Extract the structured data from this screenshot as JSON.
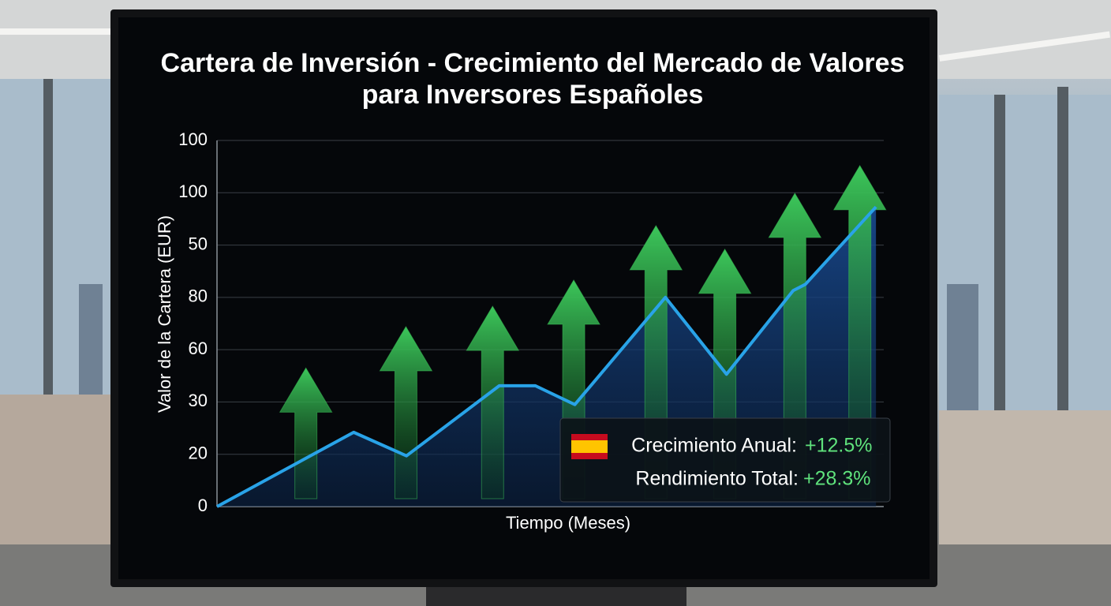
{
  "chart_data": {
    "type": "line",
    "title": "Cartera de Inversión - Crecimiento del Mercado de Valores para Inversores Españoles",
    "xlabel": "Tiempo (Meses)",
    "ylabel": "Valor de la Cartera (EUR)",
    "x": [
      0,
      2.46,
      3.41,
      5.08,
      5.73,
      6.44,
      8.07,
      9.17,
      10.37,
      10.59,
      11.86
    ],
    "values": [
      0,
      1.42,
      0.97,
      2.31,
      2.31,
      1.95,
      4.0,
      2.53,
      4.13,
      4.25,
      5.73
    ],
    "color": "#29a3e8",
    "xlim": [
      0,
      12
    ],
    "ylim": [
      0,
      7
    ],
    "yticks": [
      {
        "value": 0,
        "label": "0"
      },
      {
        "value": 1,
        "label": "20"
      },
      {
        "value": 2,
        "label": "30"
      },
      {
        "value": 3,
        "label": "60"
      },
      {
        "value": 4,
        "label": "80"
      },
      {
        "value": 5,
        "label": "50"
      },
      {
        "value": 6,
        "label": "100"
      },
      {
        "value": 7,
        "label": "100"
      }
    ],
    "grid": true,
    "arrows": {
      "color": "#3cc65a",
      "x": [
        1.6,
        3.4,
        4.96,
        6.42,
        7.9,
        9.14,
        10.4,
        11.57
      ],
      "values": [
        2.65,
        3.44,
        3.83,
        4.33,
        5.37,
        4.92,
        5.99,
        6.52
      ]
    },
    "annotations": [
      {
        "text": "Crecimiento Anual:",
        "value": "+12.5%"
      },
      {
        "text": "Rendimiento Total:",
        "value": "+28.3%"
      }
    ]
  }
}
